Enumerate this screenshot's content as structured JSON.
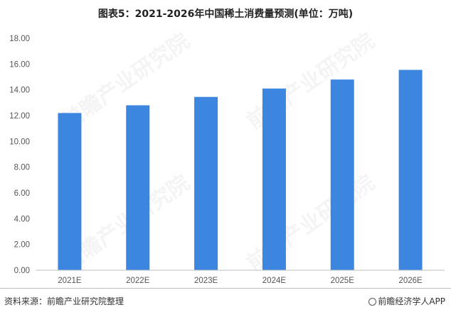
{
  "page": {
    "title": "图表5：2021-2026年中国稀土消费量预测(单位：万吨)",
    "source": "资料来源：前瞻产业研究院整理",
    "brand": "前瞻经济学人APP",
    "watermark": "前瞻产业研究院",
    "brand_icon": "at-sign-icon"
  },
  "chart_data": {
    "type": "bar",
    "title": "图表5：2021-2026年中国稀土消费量预测(单位：万吨)",
    "categories": [
      "2021E",
      "2022E",
      "2023E",
      "2024E",
      "2025E",
      "2026E"
    ],
    "values": [
      12.2,
      12.8,
      13.45,
      14.1,
      14.8,
      15.55
    ],
    "ylim": [
      0,
      18
    ],
    "yticks": [
      "0.00",
      "2.00",
      "4.00",
      "6.00",
      "8.00",
      "10.00",
      "12.00",
      "14.00",
      "16.00",
      "18.00"
    ],
    "grid": false,
    "legend": "none",
    "colors": {
      "bar": "#3c86e0",
      "axis": "#bfbfbf"
    }
  }
}
